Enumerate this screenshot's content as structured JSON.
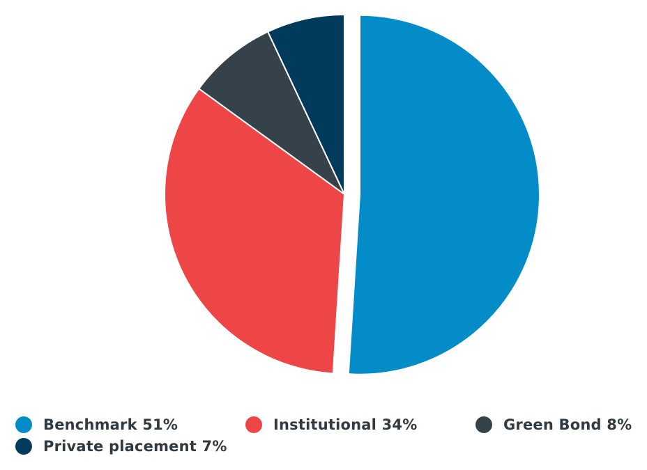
{
  "chart_data": {
    "type": "pie",
    "title": "",
    "categories": [
      "Benchmark",
      "Institutional",
      "Green Bond",
      "Private placement"
    ],
    "values": [
      51,
      34,
      8,
      7
    ],
    "unit": "%",
    "colors": [
      "#038cc8",
      "#ee4647",
      "#364249",
      "#003b5c"
    ],
    "exploded": [
      "Benchmark"
    ],
    "legend_position": "bottom",
    "legend": [
      {
        "label": "Benchmark 51%",
        "color": "#038cc8"
      },
      {
        "label": "Institutional 34%",
        "color": "#ee4647"
      },
      {
        "label": "Green Bond 8%",
        "color": "#364249"
      },
      {
        "label": "Private placement 7%",
        "color": "#003b5c"
      }
    ]
  }
}
